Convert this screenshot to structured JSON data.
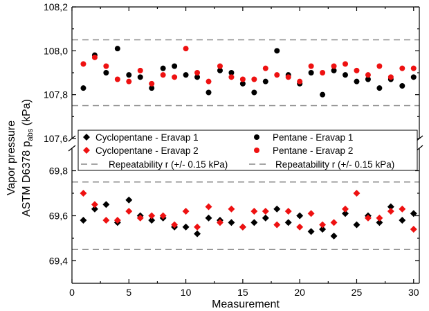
{
  "chart_data": {
    "type": "scatter",
    "title": "",
    "xlabel": "Measurement",
    "ylabel_line1": "Vapor pressure",
    "ylabel_line2_main": "ASTM D6378 p",
    "ylabel_line2_sub": "abs",
    "ylabel_line2_unit": " (kPa)",
    "xlim": [
      0,
      30.5
    ],
    "x_ticks": [
      0,
      5,
      10,
      15,
      20,
      25,
      30
    ],
    "upper_ylim": [
      107.6,
      108.2
    ],
    "upper_ticks": [
      "107,6",
      "107,8",
      "108,0",
      "108,2"
    ],
    "upper_tick_values": [
      107.6,
      107.8,
      108.0,
      108.2
    ],
    "lower_ylim": [
      69.3,
      69.9
    ],
    "lower_ticks": [
      "69,4",
      "69,6",
      "69,8"
    ],
    "lower_tick_values": [
      69.4,
      69.6,
      69.8
    ],
    "axis_break": true,
    "grid": false,
    "legend_placement": "center",
    "repeatability_lines": {
      "label": "Repeatability r (+/- 0.15 kPa)",
      "color": "#888888",
      "upper": [
        107.75,
        108.05
      ],
      "lower": [
        69.45,
        69.75
      ]
    },
    "series": [
      {
        "name": "Cyclopentane - Eravap 1",
        "marker": "diamond",
        "color": "#000000",
        "panel": "lower",
        "x": [
          1,
          2,
          3,
          4,
          5,
          6,
          7,
          8,
          9,
          10,
          11,
          12,
          13,
          14,
          15,
          16,
          17,
          18,
          19,
          20,
          21,
          22,
          23,
          24,
          25,
          26,
          27,
          28,
          29,
          30
        ],
        "values": [
          69.58,
          69.63,
          69.65,
          69.57,
          69.67,
          69.6,
          69.58,
          69.59,
          69.55,
          69.55,
          69.52,
          69.59,
          69.58,
          69.57,
          69.55,
          69.57,
          69.59,
          69.63,
          69.57,
          69.6,
          69.53,
          69.54,
          69.51,
          69.61,
          69.56,
          69.6,
          69.57,
          69.64,
          69.58,
          69.61
        ]
      },
      {
        "name": "Cyclopentane - Eravap 2",
        "marker": "diamond",
        "color": "#ee1111",
        "panel": "lower",
        "x": [
          1,
          2,
          3,
          4,
          5,
          6,
          7,
          8,
          9,
          10,
          11,
          12,
          13,
          14,
          15,
          16,
          17,
          18,
          19,
          20,
          21,
          22,
          23,
          24,
          25,
          26,
          27,
          28,
          29,
          30
        ],
        "values": [
          69.7,
          69.65,
          69.58,
          69.58,
          69.62,
          69.59,
          69.6,
          69.6,
          69.56,
          69.62,
          69.55,
          69.64,
          69.57,
          69.63,
          69.55,
          69.62,
          69.62,
          69.56,
          69.62,
          69.55,
          69.61,
          69.56,
          69.57,
          69.63,
          69.7,
          69.59,
          69.59,
          69.62,
          69.63,
          69.54
        ]
      },
      {
        "name": "Pentane - Eravap 1",
        "marker": "circle",
        "color": "#000000",
        "panel": "upper",
        "x": [
          1,
          2,
          3,
          4,
          5,
          6,
          7,
          8,
          9,
          10,
          11,
          12,
          13,
          14,
          15,
          16,
          17,
          18,
          19,
          20,
          21,
          22,
          23,
          24,
          25,
          26,
          27,
          28,
          29,
          30
        ],
        "values": [
          107.83,
          107.98,
          107.9,
          108.01,
          107.89,
          107.88,
          107.83,
          107.92,
          107.93,
          107.89,
          107.88,
          107.81,
          107.91,
          107.9,
          107.85,
          107.81,
          107.86,
          108.0,
          107.89,
          107.85,
          107.9,
          107.8,
          107.91,
          107.89,
          107.86,
          107.87,
          107.83,
          107.87,
          107.84,
          107.88
        ]
      },
      {
        "name": "Pentane - Eravap 2",
        "marker": "circle",
        "color": "#ee1111",
        "panel": "upper",
        "x": [
          1,
          2,
          3,
          4,
          5,
          6,
          7,
          8,
          9,
          10,
          11,
          12,
          13,
          14,
          15,
          16,
          17,
          18,
          19,
          20,
          21,
          22,
          23,
          24,
          25,
          26,
          27,
          28,
          29,
          30
        ],
        "values": [
          107.94,
          107.97,
          107.93,
          107.87,
          107.86,
          107.91,
          107.85,
          107.89,
          107.88,
          108.01,
          107.9,
          107.86,
          107.93,
          107.88,
          107.87,
          107.87,
          107.92,
          107.89,
          107.88,
          107.86,
          107.93,
          107.9,
          107.93,
          107.94,
          107.91,
          107.89,
          107.93,
          107.88,
          107.92,
          107.92
        ]
      }
    ]
  }
}
